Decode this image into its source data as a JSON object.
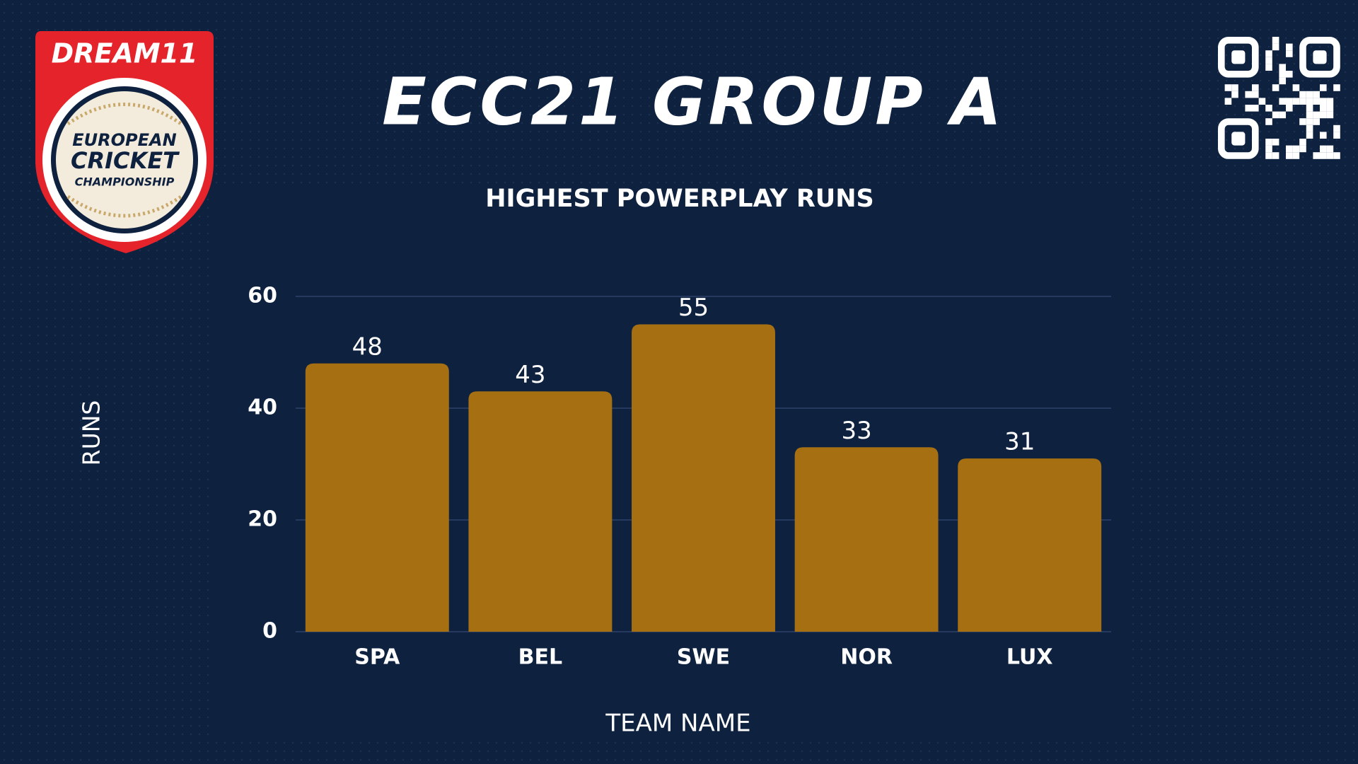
{
  "logo": {
    "brand": "DREAM11",
    "line1": "EUROPEAN",
    "line2": "CRICKET",
    "line3": "CHAMPIONSHIP"
  },
  "chart_data": {
    "type": "bar",
    "title": "ECC21 GROUP A",
    "subtitle": "HIGHEST POWERPLAY RUNS",
    "x_label": "TEAM NAME",
    "y_label": "RUNS",
    "categories": [
      "SPA",
      "BEL",
      "SWE",
      "NOR",
      "LUX"
    ],
    "values": [
      48,
      43,
      55,
      33,
      31
    ],
    "color": "#a66f12",
    "ylim": [
      0,
      60
    ],
    "yticks": [
      0,
      20,
      40,
      60
    ],
    "grid": true
  }
}
